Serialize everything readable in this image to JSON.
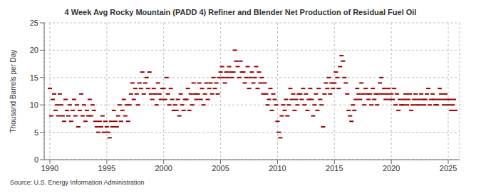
{
  "chart_data": {
    "type": "scatter",
    "title": "4 Week Avg Rocky Mountain (PADD 4) Refiner and Blender Net Production of Residual Fuel Oil",
    "y_label": "Thousand Barrels per Day",
    "source": "Source: U.S. Energy Information Administration",
    "color": "#990000",
    "marker": "dash",
    "grid": true,
    "xlim": [
      1989.5,
      2026
    ],
    "xticks": [
      1990,
      1995,
      2000,
      2005,
      2010,
      2015,
      2020,
      2025
    ],
    "ylim": [
      0,
      25
    ],
    "yticks": [
      0,
      5,
      10,
      15,
      20,
      25
    ],
    "x": [
      1990,
      1990.125,
      1990.25,
      1990.375,
      1990.5,
      1990.625,
      1990.75,
      1990.875,
      1991,
      1991.125,
      1991.25,
      1991.375,
      1991.5,
      1991.625,
      1991.75,
      1991.875,
      1992,
      1992.125,
      1992.25,
      1992.375,
      1992.5,
      1992.625,
      1992.75,
      1992.875,
      1993,
      1993.125,
      1993.25,
      1993.375,
      1993.5,
      1993.625,
      1993.75,
      1993.875,
      1994,
      1994.125,
      1994.25,
      1994.375,
      1994.5,
      1994.625,
      1994.75,
      1994.875,
      1995,
      1995.125,
      1995.25,
      1995.375,
      1995.5,
      1995.625,
      1995.75,
      1995.875,
      1996,
      1996.125,
      1996.25,
      1996.375,
      1996.5,
      1996.625,
      1996.75,
      1996.875,
      1997,
      1997.125,
      1997.25,
      1997.375,
      1997.5,
      1997.625,
      1997.75,
      1997.875,
      1998,
      1998.125,
      1998.25,
      1998.375,
      1998.5,
      1998.625,
      1998.75,
      1998.875,
      1999,
      1999.125,
      1999.25,
      1999.375,
      1999.5,
      1999.625,
      1999.75,
      1999.875,
      2000,
      2000.125,
      2000.25,
      2000.375,
      2000.5,
      2000.625,
      2000.75,
      2000.875,
      2001,
      2001.125,
      2001.25,
      2001.375,
      2001.5,
      2001.625,
      2001.75,
      2001.875,
      2002,
      2002.125,
      2002.25,
      2002.375,
      2002.5,
      2002.625,
      2002.75,
      2002.875,
      2003,
      2003.125,
      2003.25,
      2003.375,
      2003.5,
      2003.625,
      2003.75,
      2003.875,
      2004,
      2004.125,
      2004.25,
      2004.375,
      2004.5,
      2004.625,
      2004.75,
      2004.875,
      2005,
      2005.125,
      2005.25,
      2005.375,
      2005.5,
      2005.625,
      2005.75,
      2005.875,
      2006,
      2006.125,
      2006.25,
      2006.375,
      2006.5,
      2006.625,
      2006.75,
      2006.875,
      2007,
      2007.125,
      2007.25,
      2007.375,
      2007.5,
      2007.625,
      2007.75,
      2007.875,
      2008,
      2008.125,
      2008.25,
      2008.375,
      2008.5,
      2008.625,
      2008.75,
      2008.875,
      2009,
      2009.125,
      2009.25,
      2009.375,
      2009.5,
      2009.625,
      2009.75,
      2009.875,
      2010,
      2010.125,
      2010.25,
      2010.375,
      2010.5,
      2010.625,
      2010.75,
      2010.875,
      2011,
      2011.125,
      2011.25,
      2011.375,
      2011.5,
      2011.625,
      2011.75,
      2011.875,
      2012,
      2012.125,
      2012.25,
      2012.375,
      2012.5,
      2012.625,
      2012.75,
      2012.875,
      2013,
      2013.125,
      2013.25,
      2013.375,
      2013.5,
      2013.625,
      2013.75,
      2013.875,
      2014,
      2014.125,
      2014.25,
      2014.375,
      2014.5,
      2014.625,
      2014.75,
      2014.875,
      2015,
      2015.125,
      2015.25,
      2015.375,
      2015.5,
      2015.625,
      2015.75,
      2015.875,
      2016,
      2016.125,
      2016.25,
      2016.375,
      2016.5,
      2016.625,
      2016.75,
      2016.875,
      2017,
      2017.125,
      2017.25,
      2017.375,
      2017.5,
      2017.625,
      2017.75,
      2017.875,
      2018,
      2018.125,
      2018.25,
      2018.375,
      2018.5,
      2018.625,
      2018.75,
      2018.875,
      2019,
      2019.125,
      2019.25,
      2019.375,
      2019.5,
      2019.625,
      2019.75,
      2019.875,
      2020,
      2020.125,
      2020.25,
      2020.375,
      2020.5,
      2020.625,
      2020.75,
      2020.875,
      2021,
      2021.125,
      2021.25,
      2021.375,
      2021.5,
      2021.625,
      2021.75,
      2021.875,
      2022,
      2022.125,
      2022.25,
      2022.375,
      2022.5,
      2022.625,
      2022.75,
      2022.875,
      2023,
      2023.125,
      2023.25,
      2023.375,
      2023.5,
      2023.625,
      2023.75,
      2023.875,
      2024,
      2024.125,
      2024.25,
      2024.375,
      2024.5,
      2024.625,
      2024.75,
      2024.875,
      2025,
      2025.125,
      2025.25,
      2025.375,
      2025.5,
      2025.625
    ],
    "values": [
      13,
      8,
      11,
      12,
      9,
      10,
      8,
      12,
      10,
      8,
      7,
      11,
      9,
      8,
      10,
      7,
      9,
      11,
      8,
      10,
      6,
      9,
      12,
      8,
      10,
      7,
      9,
      8,
      11,
      8,
      10,
      9,
      7,
      6,
      5,
      7,
      6,
      8,
      5,
      7,
      6,
      5,
      4,
      7,
      6,
      9,
      7,
      6,
      8,
      10,
      7,
      9,
      11,
      8,
      10,
      7,
      10,
      12,
      14,
      11,
      13,
      12,
      10,
      14,
      13,
      16,
      12,
      14,
      15,
      13,
      16,
      12,
      11,
      13,
      12,
      10,
      14,
      12,
      11,
      13,
      13,
      11,
      15,
      12,
      10,
      13,
      11,
      9,
      10,
      9,
      11,
      8,
      12,
      10,
      9,
      11,
      11,
      13,
      9,
      12,
      10,
      14,
      12,
      11,
      12,
      14,
      11,
      13,
      10,
      12,
      14,
      11,
      13,
      14,
      12,
      15,
      13,
      14,
      12,
      15,
      16,
      17,
      15,
      14,
      16,
      15,
      17,
      16,
      15,
      16,
      20,
      18,
      17,
      15,
      18,
      16,
      16,
      14,
      15,
      17,
      13,
      15,
      16,
      14,
      15,
      17,
      13,
      16,
      14,
      15,
      12,
      14,
      12,
      10,
      11,
      13,
      9,
      12,
      11,
      10,
      7,
      5,
      4,
      8,
      10,
      9,
      11,
      8,
      10,
      13,
      11,
      12,
      9,
      11,
      10,
      12,
      12,
      11,
      13,
      10,
      12,
      9,
      11,
      13,
      11,
      8,
      10,
      12,
      9,
      13,
      11,
      10,
      6,
      12,
      14,
      13,
      15,
      12,
      14,
      13,
      14,
      16,
      15,
      13,
      17,
      19,
      18,
      15,
      14,
      12,
      9,
      8,
      7,
      10,
      9,
      11,
      13,
      12,
      11,
      14,
      12,
      10,
      13,
      12,
      11,
      12,
      10,
      13,
      11,
      12,
      10,
      12,
      14,
      15,
      12,
      13,
      11,
      12,
      13,
      11,
      12,
      11,
      13,
      10,
      12,
      9,
      11,
      10,
      10,
      11,
      12,
      10,
      11,
      12,
      9,
      10,
      11,
      12,
      10,
      11,
      10,
      12,
      11,
      10,
      11,
      12,
      13,
      10,
      11,
      12,
      11,
      10,
      10,
      11,
      13,
      12,
      11,
      10,
      12,
      11,
      10,
      11,
      9,
      10,
      11,
      9
    ]
  }
}
